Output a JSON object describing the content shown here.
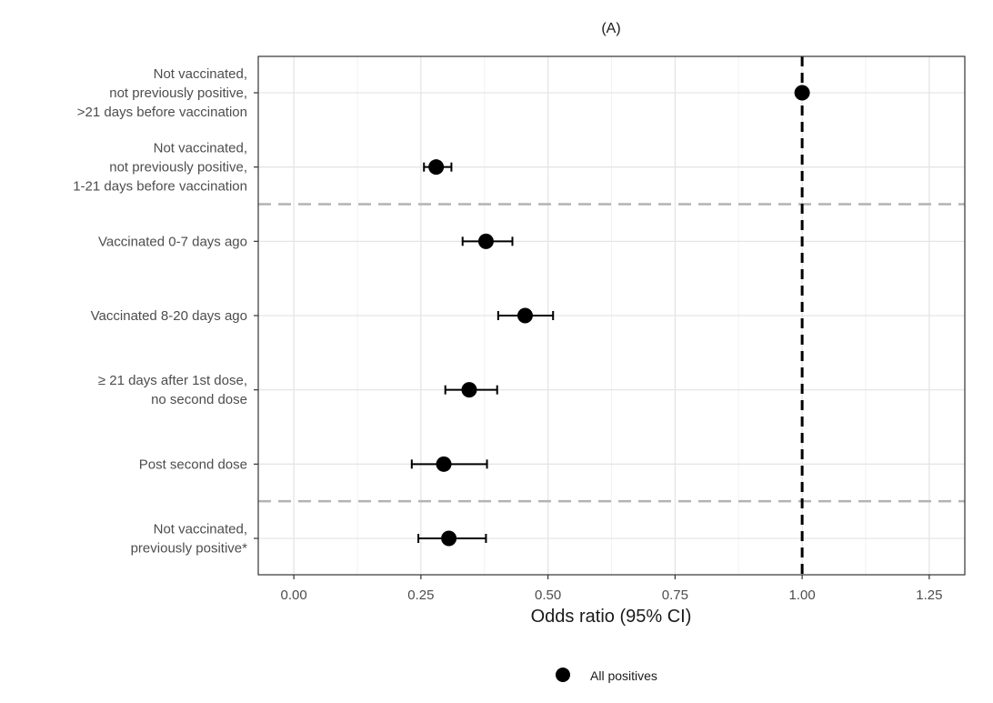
{
  "chart_data": {
    "type": "scatter",
    "title": "(A)",
    "xlabel": "Odds ratio (95% CI)",
    "ylabel": "",
    "xlim": [
      -0.07,
      1.32
    ],
    "x_ticks": [
      "0.00",
      "0.25",
      "0.50",
      "0.75",
      "1.00",
      "1.25"
    ],
    "x_tick_values": [
      0,
      0.25,
      0.5,
      0.75,
      1.0,
      1.25
    ],
    "reference_line": 1.0,
    "grid": true,
    "legend_position": "bottom",
    "series": [
      {
        "name": "All positives",
        "color": "#000000",
        "points": [
          {
            "label": [
              "Not vaccinated,",
              "not previously positive,",
              ">21 days before vaccination"
            ],
            "estimate": 1.0,
            "lower": null,
            "upper": null
          },
          {
            "label": [
              "Not vaccinated,",
              "not previously positive,",
              "1-21 days before vaccination"
            ],
            "estimate": 0.28,
            "lower": 0.256,
            "upper": 0.31
          },
          {
            "label": [
              "Vaccinated 0-7 days ago"
            ],
            "estimate": 0.378,
            "lower": 0.332,
            "upper": 0.43
          },
          {
            "label": [
              "Vaccinated 8-20 days ago"
            ],
            "estimate": 0.455,
            "lower": 0.402,
            "upper": 0.51
          },
          {
            "label": [
              "≥ 21 days after 1st dose,",
              "no second dose"
            ],
            "estimate": 0.345,
            "lower": 0.298,
            "upper": 0.4
          },
          {
            "label": [
              "Post second dose"
            ],
            "estimate": 0.295,
            "lower": 0.232,
            "upper": 0.38
          },
          {
            "label": [
              "Not vaccinated,",
              "previously positive*"
            ],
            "estimate": 0.305,
            "lower": 0.245,
            "upper": 0.378
          }
        ]
      }
    ],
    "separators_after_index": [
      1,
      5
    ]
  }
}
